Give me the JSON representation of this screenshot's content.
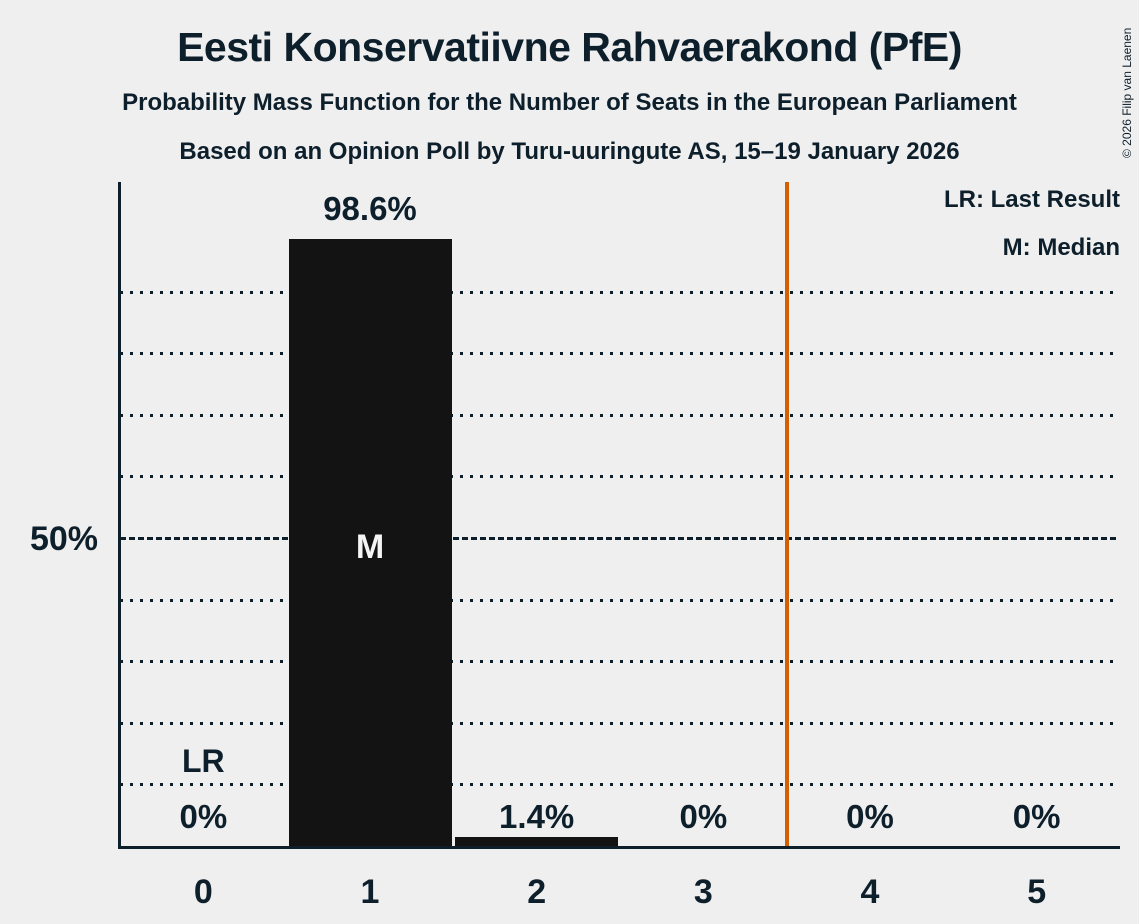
{
  "title": "Eesti Konservatiivne Rahvaerakond (PfE)",
  "subtitle1": "Probability Mass Function for the Number of Seats in the European Parliament",
  "subtitle2": "Based on an Opinion Poll by Turu-uuringute AS, 15–19 January 2026",
  "copyright": "© 2026 Filip van Laenen",
  "legend": {
    "lr": "LR: Last Result",
    "m": "M: Median"
  },
  "colors": {
    "background": "#efefef",
    "ink": "#0e1f2c",
    "bar": "#131313",
    "threshold_line": "#d45f00",
    "median_text": "#f5f5f5"
  },
  "chart_data": {
    "type": "bar",
    "title": "Probability Mass Function for the Number of Seats in the European Parliament",
    "categories": [
      "0",
      "1",
      "2",
      "3",
      "4",
      "5"
    ],
    "values": [
      0,
      98.6,
      1.4,
      0,
      0,
      0
    ],
    "value_labels": [
      "0%",
      "98.6%",
      "1.4%",
      "0%",
      "0%",
      "0%"
    ],
    "xlabel": "",
    "ylabel": "",
    "ylim": [
      0,
      107.8
    ],
    "yticks": [
      {
        "value": 50,
        "label": "50%"
      }
    ],
    "gridlines_percent": [
      10,
      20,
      30,
      40,
      60,
      70,
      80,
      90
    ],
    "solid_line_percent": 50,
    "grid": "dotted horizontal",
    "legend_position": "top-right",
    "median": {
      "category_index": 1,
      "label": "M"
    },
    "last_result": {
      "category_index": 0,
      "label": "LR"
    },
    "threshold_line": {
      "x": 3.5,
      "color": "#d45f00"
    }
  }
}
